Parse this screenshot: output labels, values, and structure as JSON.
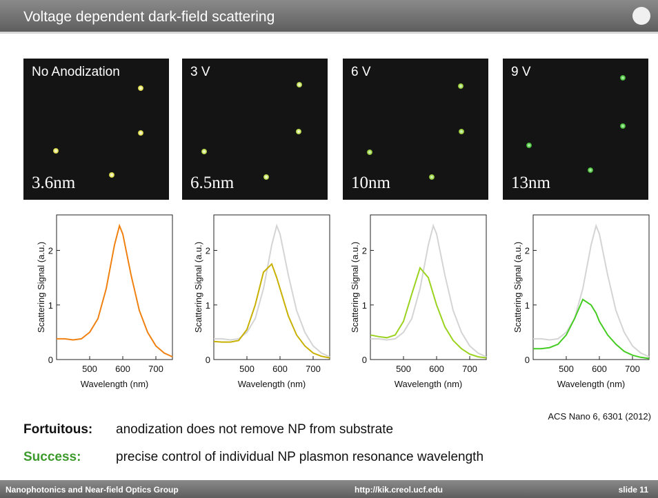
{
  "header": {
    "title": "Voltage dependent dark-field scattering"
  },
  "images": [
    {
      "label": "No Anodization",
      "thickness": "3.6nm"
    },
    {
      "label": "3 V",
      "thickness": "6.5nm"
    },
    {
      "label": "6 V",
      "thickness": "10nm"
    },
    {
      "label": "9 V",
      "thickness": "13nm"
    }
  ],
  "chart_data": [
    {
      "type": "line",
      "x_label": "Wavelength (nm)",
      "y_label": "Scattering Signal (a.u.)",
      "x": [
        400,
        425,
        450,
        475,
        500,
        525,
        550,
        575,
        590,
        600,
        625,
        650,
        675,
        700,
        725,
        750
      ],
      "xlim": [
        400,
        750
      ],
      "xticks": [
        500,
        600,
        700
      ],
      "ylim": [
        0,
        2.65
      ],
      "yticks": [
        0,
        1,
        2
      ],
      "series": [
        {
          "color": "#f08010",
          "values": [
            0.38,
            0.38,
            0.36,
            0.38,
            0.5,
            0.75,
            1.3,
            2.1,
            2.45,
            2.3,
            1.55,
            0.9,
            0.5,
            0.25,
            0.12,
            0.05
          ]
        }
      ]
    },
    {
      "type": "line",
      "x_label": "Wavelength (nm)",
      "y_label": "Scattering Signal (a.u.)",
      "x": [
        400,
        425,
        450,
        475,
        500,
        525,
        550,
        575,
        590,
        600,
        625,
        650,
        675,
        700,
        725,
        750
      ],
      "xlim": [
        400,
        750
      ],
      "xticks": [
        500,
        600,
        700
      ],
      "ylim": [
        0,
        2.65
      ],
      "yticks": [
        0,
        1,
        2
      ],
      "series": [
        {
          "color": "#d4d4d4",
          "values": [
            0.38,
            0.38,
            0.36,
            0.38,
            0.5,
            0.75,
            1.3,
            2.1,
            2.45,
            2.3,
            1.55,
            0.9,
            0.5,
            0.25,
            0.12,
            0.05
          ]
        },
        {
          "color": "#c8b000",
          "values": [
            0.33,
            0.32,
            0.32,
            0.35,
            0.55,
            1.0,
            1.6,
            1.75,
            1.5,
            1.3,
            0.8,
            0.45,
            0.25,
            0.12,
            0.06,
            0.03
          ]
        }
      ]
    },
    {
      "type": "line",
      "x_label": "Wavelength (nm)",
      "y_label": "Scattering Signal (a.u.)",
      "x": [
        400,
        425,
        450,
        475,
        500,
        525,
        550,
        575,
        590,
        600,
        625,
        650,
        675,
        700,
        725,
        750
      ],
      "xlim": [
        400,
        750
      ],
      "xticks": [
        500,
        600,
        700
      ],
      "ylim": [
        0,
        2.65
      ],
      "yticks": [
        0,
        1,
        2
      ],
      "series": [
        {
          "color": "#d4d4d4",
          "values": [
            0.38,
            0.38,
            0.36,
            0.38,
            0.5,
            0.75,
            1.3,
            2.1,
            2.45,
            2.3,
            1.55,
            0.9,
            0.5,
            0.25,
            0.12,
            0.05
          ]
        },
        {
          "color": "#9ad21e",
          "values": [
            0.45,
            0.42,
            0.4,
            0.45,
            0.7,
            1.2,
            1.68,
            1.5,
            1.2,
            1.0,
            0.6,
            0.35,
            0.2,
            0.1,
            0.05,
            0.03
          ]
        }
      ]
    },
    {
      "type": "line",
      "x_label": "Wavelength (nm)",
      "y_label": "Scattering Signal (a.u.)",
      "x": [
        400,
        425,
        450,
        475,
        500,
        525,
        550,
        575,
        590,
        600,
        625,
        650,
        675,
        700,
        725,
        750
      ],
      "xlim": [
        400,
        750
      ],
      "xticks": [
        500,
        600,
        700
      ],
      "ylim": [
        0,
        2.65
      ],
      "yticks": [
        0,
        1,
        2
      ],
      "series": [
        {
          "color": "#d4d4d4",
          "values": [
            0.38,
            0.38,
            0.36,
            0.38,
            0.5,
            0.75,
            1.3,
            2.1,
            2.45,
            2.3,
            1.55,
            0.9,
            0.5,
            0.25,
            0.12,
            0.05
          ]
        },
        {
          "color": "#44cc22",
          "values": [
            0.2,
            0.2,
            0.22,
            0.28,
            0.45,
            0.75,
            1.1,
            1.0,
            0.85,
            0.7,
            0.45,
            0.28,
            0.15,
            0.08,
            0.04,
            0.02
          ]
        }
      ]
    }
  ],
  "citation": "ACS Nano 6, 6301 (2012)",
  "notes": [
    {
      "label": "Fortuitous:",
      "text": "anodization does not remove NP from substrate"
    },
    {
      "label": "Success:",
      "text": "precise control of individual NP plasmon resonance wavelength"
    }
  ],
  "footer": {
    "group": "Nanophotonics and Near-field Optics Group",
    "url": "http://kik.creol.ucf.edu",
    "slide": "slide 11"
  }
}
